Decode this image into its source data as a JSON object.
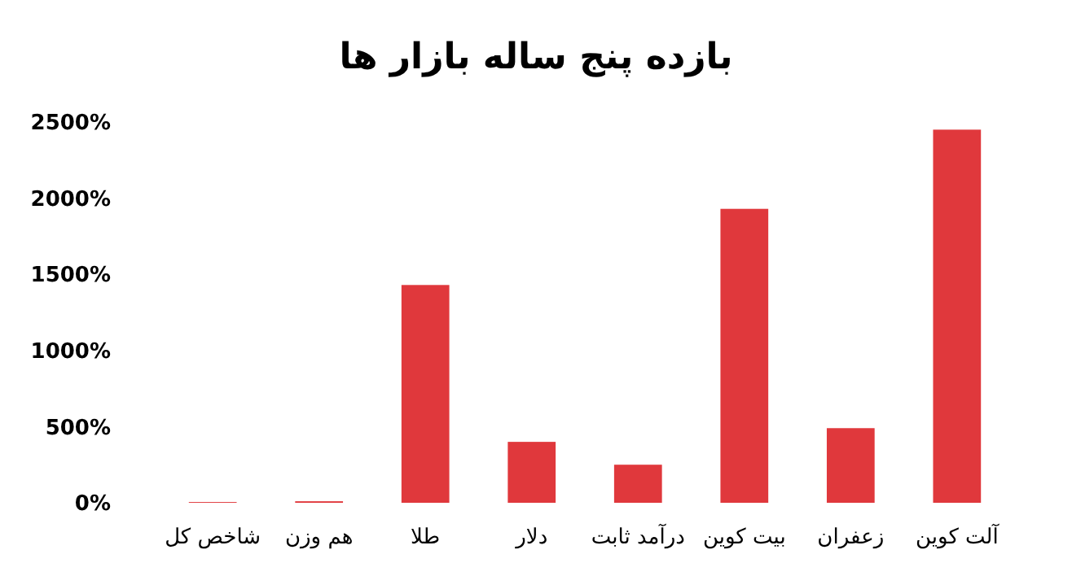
{
  "chart_data": {
    "type": "bar",
    "title": "بازده پنج ساله بازار ها",
    "categories": [
      "شاخص کل",
      "هم وزن",
      "طلا",
      "دلار",
      "درآمد ثابت",
      "بیت کوین",
      "زعفران",
      "آلت کوین"
    ],
    "values": [
      5,
      10,
      1430,
      400,
      250,
      1930,
      490,
      2450
    ],
    "color": "#e0383c",
    "ylim": [
      0,
      2500
    ],
    "yticks": [
      {
        "value": 0,
        "label": "0%"
      },
      {
        "value": 500,
        "label": "500%"
      },
      {
        "value": 1000,
        "label": "1000%"
      },
      {
        "value": 1500,
        "label": "1500%"
      },
      {
        "value": 2000,
        "label": "2000%"
      },
      {
        "value": 2500,
        "label": "2500%"
      }
    ],
    "grid": false
  }
}
